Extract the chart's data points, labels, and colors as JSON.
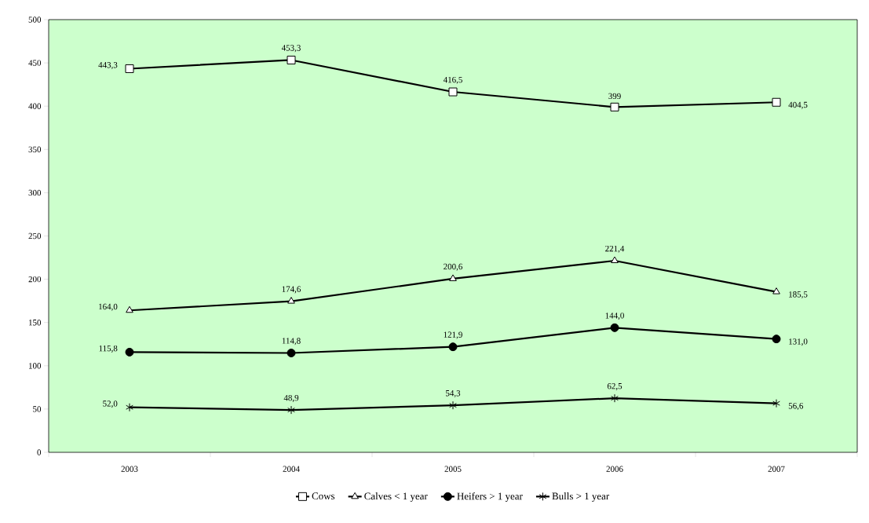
{
  "chart_data": {
    "type": "line",
    "categories": [
      "2003",
      "2004",
      "2005",
      "2006",
      "2007"
    ],
    "series": [
      {
        "name": "Cows",
        "color": "#000000",
        "marker": "square",
        "values": [
          443.3,
          453.3,
          416.5,
          399,
          404.5
        ],
        "value_labels": [
          "443,3",
          "453,3",
          "416,5",
          "399",
          "404,5"
        ]
      },
      {
        "name": "Calves < 1 year",
        "color": "#000000",
        "marker": "triangle",
        "values": [
          164.0,
          174.6,
          200.6,
          221.4,
          185.5
        ],
        "value_labels": [
          "164,0",
          "174,6",
          "200,6",
          "221,4",
          "185,5"
        ]
      },
      {
        "name": "Heifers > 1 year",
        "color": "#000000",
        "marker": "circle",
        "values": [
          115.8,
          114.8,
          121.9,
          144.0,
          131.0
        ],
        "value_labels": [
          "115,8",
          "114,8",
          "121,9",
          "144,0",
          "131,0"
        ]
      },
      {
        "name": "Bulls > 1 year",
        "color": "#000000",
        "marker": "cross",
        "values": [
          52.0,
          48.9,
          54.3,
          62.5,
          56.6
        ],
        "value_labels": [
          "52,0",
          "48,9",
          "54,3",
          "62,5",
          "56,6"
        ]
      }
    ],
    "ylim": [
      0,
      500
    ],
    "yticks": [
      0,
      50,
      100,
      150,
      200,
      250,
      300,
      350,
      400,
      450,
      500
    ],
    "grid": false,
    "legend": "bottom",
    "line_style": "solid"
  }
}
